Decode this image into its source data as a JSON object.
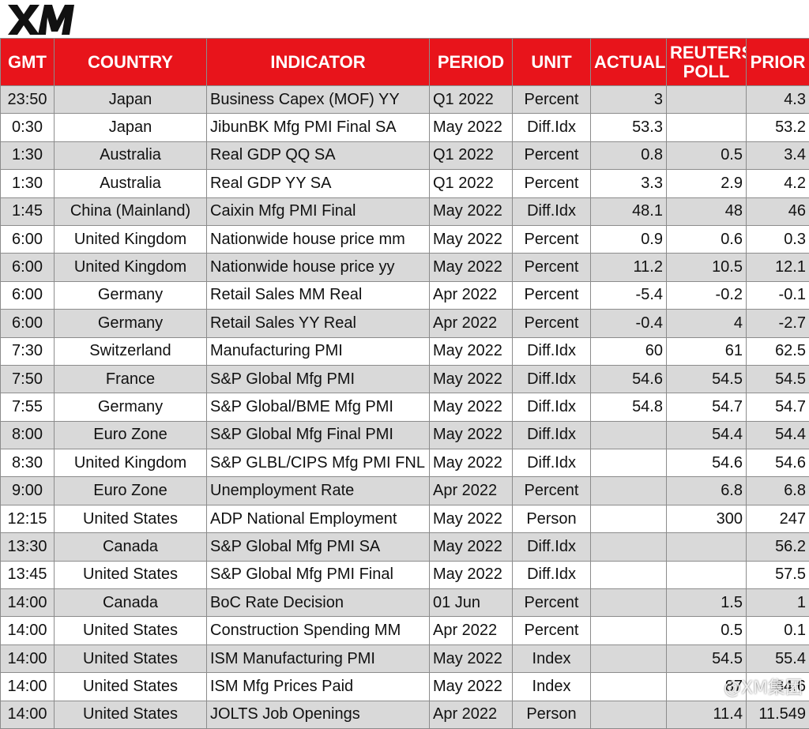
{
  "logo": {
    "text": "XM",
    "color": "#e8141b"
  },
  "colors": {
    "header_bg": "#e8141b",
    "header_text": "#ffffff",
    "row_stripe": "#d9d9d9"
  },
  "table": {
    "headers": [
      "GMT",
      "COUNTRY",
      "INDICATOR",
      "PERIOD",
      "UNIT",
      "ACTUAL",
      "REUTERS POLL",
      "PRIOR"
    ],
    "rows": [
      [
        "23:50",
        "Japan",
        "Business Capex (MOF) YY",
        "Q1 2022",
        "Percent",
        "3",
        "",
        "4.3"
      ],
      [
        "0:30",
        "Japan",
        "JibunBK Mfg PMI Final SA",
        "May 2022",
        "Diff.Idx",
        "53.3",
        "",
        "53.2"
      ],
      [
        "1:30",
        "Australia",
        "Real GDP QQ SA",
        "Q1 2022",
        "Percent",
        "0.8",
        "0.5",
        "3.4"
      ],
      [
        "1:30",
        "Australia",
        "Real GDP YY SA",
        "Q1 2022",
        "Percent",
        "3.3",
        "2.9",
        "4.2"
      ],
      [
        "1:45",
        "China (Mainland)",
        "Caixin Mfg PMI Final",
        "May 2022",
        "Diff.Idx",
        "48.1",
        "48",
        "46"
      ],
      [
        "6:00",
        "United Kingdom",
        "Nationwide house price mm",
        "May 2022",
        "Percent",
        "0.9",
        "0.6",
        "0.3"
      ],
      [
        "6:00",
        "United Kingdom",
        "Nationwide house price yy",
        "May 2022",
        "Percent",
        "11.2",
        "10.5",
        "12.1"
      ],
      [
        "6:00",
        "Germany",
        "Retail Sales MM Real",
        "Apr 2022",
        "Percent",
        "-5.4",
        "-0.2",
        "-0.1"
      ],
      [
        "6:00",
        "Germany",
        "Retail Sales YY Real",
        "Apr 2022",
        "Percent",
        "-0.4",
        "4",
        "-2.7"
      ],
      [
        "7:30",
        "Switzerland",
        "Manufacturing PMI",
        "May 2022",
        "Diff.Idx",
        "60",
        "61",
        "62.5"
      ],
      [
        "7:50",
        "France",
        "S&P Global Mfg PMI",
        "May 2022",
        "Diff.Idx",
        "54.6",
        "54.5",
        "54.5"
      ],
      [
        "7:55",
        "Germany",
        "S&P Global/BME Mfg PMI",
        "May 2022",
        "Diff.Idx",
        "54.8",
        "54.7",
        "54.7"
      ],
      [
        "8:00",
        "Euro Zone",
        "S&P Global Mfg Final PMI",
        "May 2022",
        "Diff.Idx",
        "",
        "54.4",
        "54.4"
      ],
      [
        "8:30",
        "United Kingdom",
        "S&P GLBL/CIPS Mfg PMI FNL",
        "May 2022",
        "Diff.Idx",
        "",
        "54.6",
        "54.6"
      ],
      [
        "9:00",
        "Euro Zone",
        "Unemployment Rate",
        "Apr 2022",
        "Percent",
        "",
        "6.8",
        "6.8"
      ],
      [
        "12:15",
        "United States",
        "ADP National Employment",
        "May 2022",
        "Person",
        "",
        "300",
        "247"
      ],
      [
        "13:30",
        "Canada",
        "S&P Global Mfg PMI SA",
        "May 2022",
        "Diff.Idx",
        "",
        "",
        "56.2"
      ],
      [
        "13:45",
        "United States",
        "S&P Global Mfg PMI Final",
        "May 2022",
        "Diff.Idx",
        "",
        "",
        "57.5"
      ],
      [
        "14:00",
        "Canada",
        "BoC Rate Decision",
        "01 Jun",
        "Percent",
        "",
        "1.5",
        "1"
      ],
      [
        "14:00",
        "United States",
        "Construction Spending MM",
        "Apr 2022",
        "Percent",
        "",
        "0.5",
        "0.1"
      ],
      [
        "14:00",
        "United States",
        "ISM Manufacturing PMI",
        "May 2022",
        "Index",
        "",
        "54.5",
        "55.4"
      ],
      [
        "14:00",
        "United States",
        "ISM Mfg Prices Paid",
        "May 2022",
        "Index",
        "",
        "87",
        "84.6"
      ],
      [
        "14:00",
        "United States",
        "JOLTS Job Openings",
        "Apr 2022",
        "Person",
        "",
        "11.4",
        "11.549"
      ]
    ]
  },
  "watermark": {
    "text": "@XM集团"
  }
}
